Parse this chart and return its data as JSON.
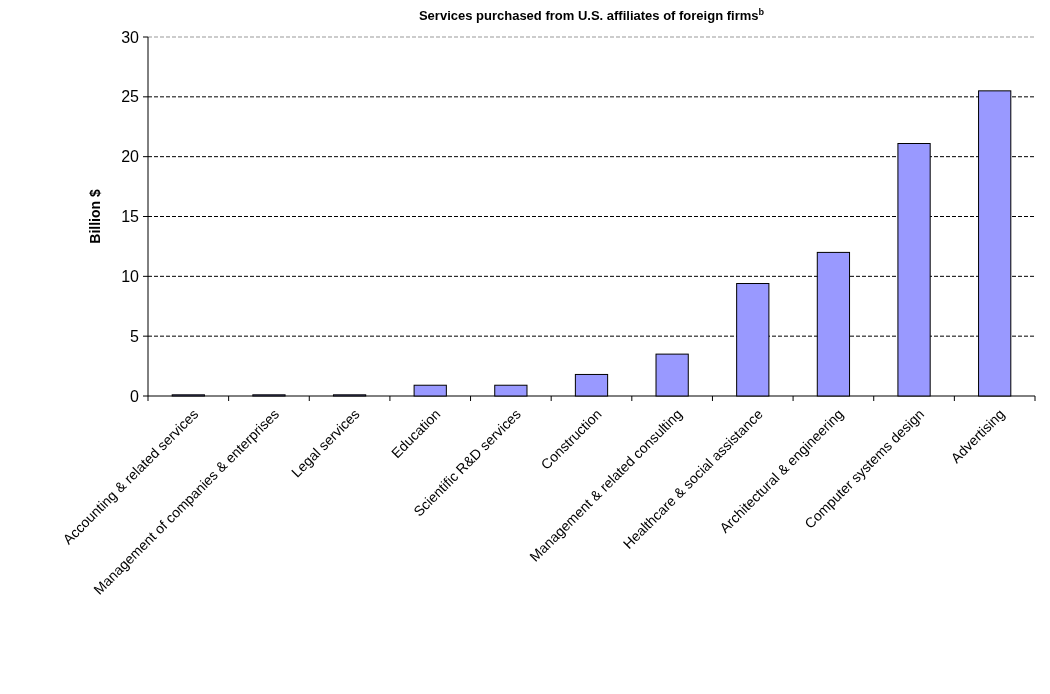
{
  "chart_data": {
    "type": "bar",
    "title": "Services purchased from U.S. affiliates of foreign firms$^{b}$",
    "ylabel": "Billion $",
    "categories": [
      "Accounting & related services",
      "Management of companies & enterprises",
      "Legal services",
      "Education",
      "Scientific R&D services",
      "Construction",
      "Management & related consulting",
      "Healthcare & social assistance",
      "Architectural & engineering",
      "Computer systems design",
      "Advertising"
    ],
    "values": [
      0.1,
      0.1,
      0.1,
      0.9,
      0.9,
      1.8,
      3.5,
      9.4,
      12,
      21.1,
      25.5
    ],
    "color": "#9999ff",
    "ylim": [
      0,
      30
    ],
    "yticks": [
      0,
      5,
      10,
      15,
      20,
      25,
      30
    ],
    "grid": "y"
  }
}
